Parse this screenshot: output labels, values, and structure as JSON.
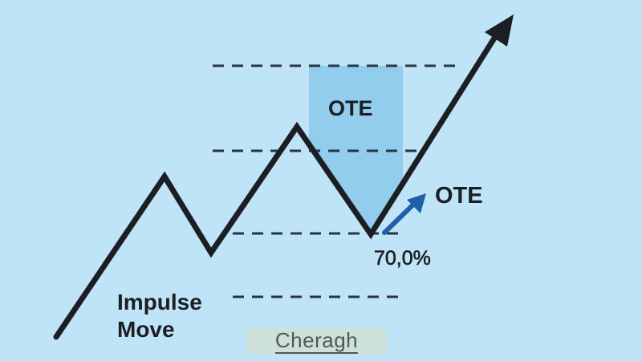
{
  "labels": {
    "ote_zone": "OTE",
    "ote_arrow": "OTE",
    "level": "70,0%",
    "impulse_line1": "Impulse",
    "impulse_line2": "Move"
  },
  "logo": {
    "text": "Cheragh"
  },
  "colors": {
    "background": "#bfe3f7",
    "ote_zone": "#92cdee",
    "price_line": "#1b1e22",
    "ote_arrow": "#1f5fa6"
  }
}
